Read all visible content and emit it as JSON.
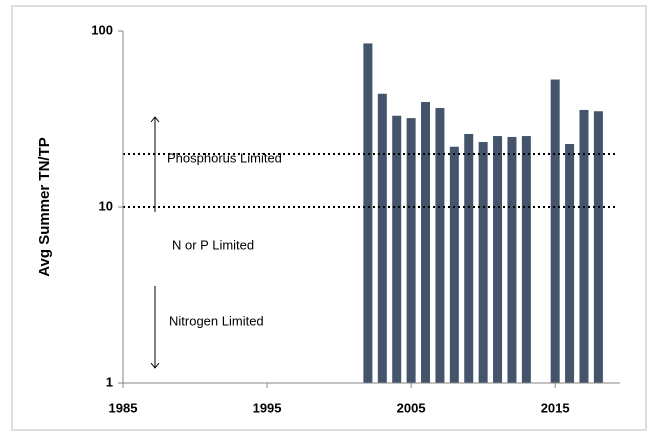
{
  "chart_data": {
    "type": "bar",
    "y_label": "Avg Summer TN/TP",
    "x": [
      2002,
      2003,
      2004,
      2005,
      2006,
      2007,
      2008,
      2009,
      2010,
      2011,
      2012,
      2013,
      2014,
      2015,
      2016,
      2017,
      2018
    ],
    "values": [
      85,
      44,
      33,
      32,
      39.5,
      36.5,
      22,
      26,
      23.4,
      25.3,
      25,
      25.3,
      null,
      53,
      22.8,
      35.6,
      35
    ],
    "color": "#44546a",
    "xlim": [
      1985,
      2019.5
    ],
    "xticks": [
      1985,
      1995,
      2005,
      2015
    ],
    "ylim": [
      1,
      100
    ],
    "yticks": [
      1,
      10,
      100
    ],
    "log_y": true,
    "reference_lines": [
      20,
      10
    ],
    "annotations": [
      "Phosphorus Limited",
      "N or P Limited",
      "Nitrogen Limited"
    ]
  }
}
